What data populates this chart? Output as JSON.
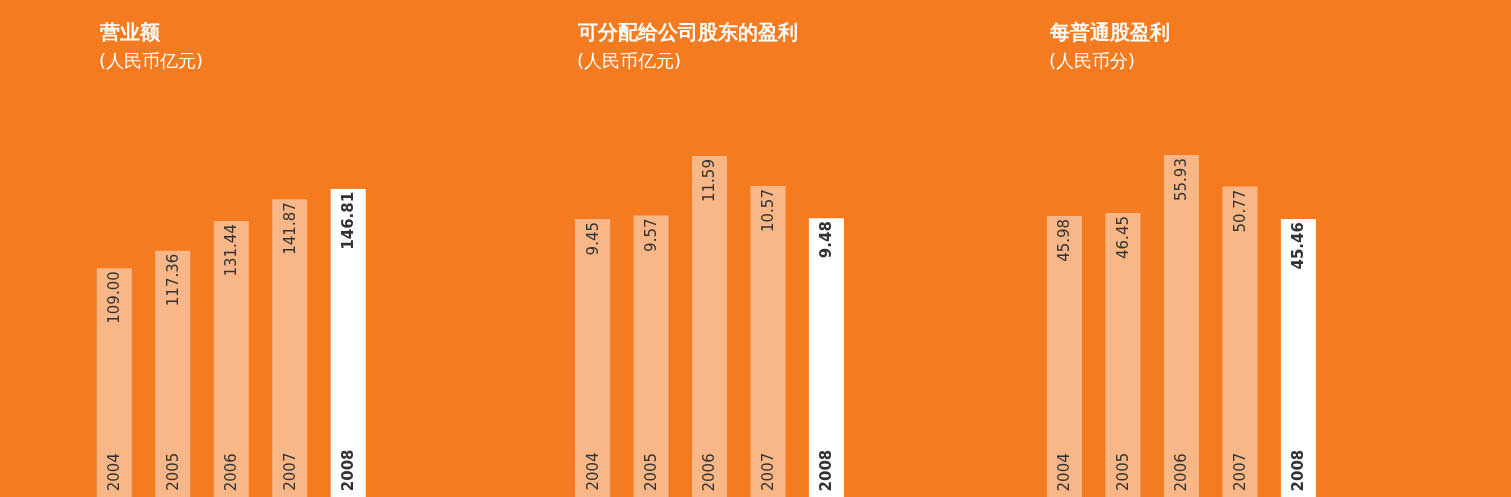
{
  "chart_data": [
    {
      "type": "bar",
      "title": "营业额",
      "subtitle": "(人民币亿元)",
      "categories": [
        "2004",
        "2005",
        "2006",
        "2007",
        "2008"
      ],
      "values": [
        109.0,
        117.36,
        131.44,
        141.87,
        146.81
      ],
      "value_labels": [
        "109.00",
        "117.36",
        "131.44",
        "141.87",
        "146.81"
      ],
      "colors": [
        "#f9b687",
        "#f9b687",
        "#f9b687",
        "#f9b687",
        "#ffffff"
      ],
      "tick_labels": "x"
    },
    {
      "type": "bar",
      "title": "可分配给公司股东的盈利",
      "subtitle": "(人民币亿元)",
      "categories": [
        "2004",
        "2005",
        "2006",
        "2007",
        "2008"
      ],
      "values": [
        9.45,
        9.57,
        11.59,
        10.57,
        9.48
      ],
      "value_labels": [
        "9.45",
        "9.57",
        "11.59",
        "10.57",
        "9.48"
      ],
      "colors": [
        "#f9b687",
        "#f9b687",
        "#f9b687",
        "#f9b687",
        "#ffffff"
      ],
      "tick_labels": "x"
    },
    {
      "type": "bar",
      "title": "每普通股盈利",
      "subtitle": "(人民币分)",
      "categories": [
        "2004",
        "2005",
        "2006",
        "2007",
        "2008"
      ],
      "values": [
        45.98,
        46.45,
        55.93,
        50.77,
        45.46
      ],
      "value_labels": [
        "45.98",
        "46.45",
        "55.93",
        "50.77",
        "45.46"
      ],
      "colors": [
        "#f9b687",
        "#f9b687",
        "#f9b687",
        "#f9b687",
        "#ffffff"
      ],
      "tick_labels": "x"
    }
  ]
}
